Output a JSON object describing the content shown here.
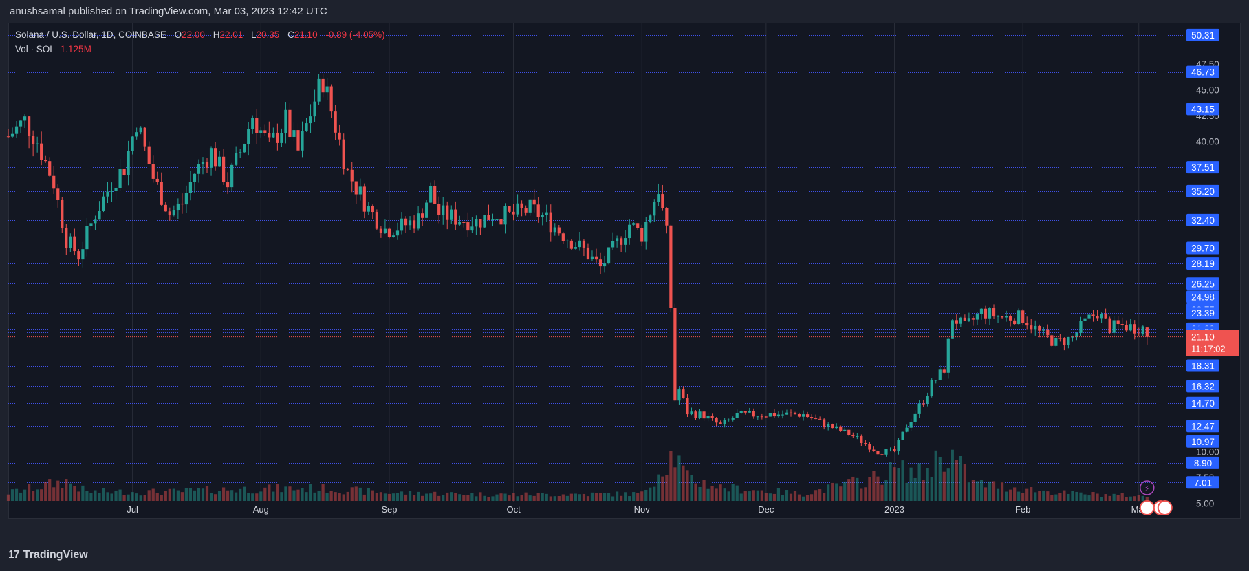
{
  "header": {
    "publisher": "anushsamal published on TradingView.com, Mar 03, 2023 12:42 UTC"
  },
  "legend": {
    "symbol": "Solana / U.S. Dollar, 1D, COINBASE",
    "open_label": "O",
    "open": "22.00",
    "high_label": "H",
    "high": "22.01",
    "low_label": "L",
    "low": "20.35",
    "close_label": "C",
    "close": "21.10",
    "change": "-0.89 (-4.05%)",
    "volume_label": "Vol · SOL",
    "volume": "1.125M"
  },
  "footer": {
    "brand": "TradingView"
  },
  "colors": {
    "up": "#26a69a",
    "down": "#ef5350",
    "bg": "#131722",
    "grid": "#2a2e39",
    "hline": "#3f51e8",
    "label": "#2962ff"
  },
  "chart_data": {
    "type": "candlestick",
    "title": "Solana / U.S. Dollar, 1D, COINBASE",
    "currency": "USD",
    "xlim": [
      "2022-06-01",
      "2023-03-12"
    ],
    "ylim": [
      3.5,
      51.5
    ],
    "x_ticks": [
      "Jul",
      "Aug",
      "Sep",
      "Oct",
      "Nov",
      "Dec",
      "2023",
      "Feb",
      "Mar"
    ],
    "y_ticks": [
      "5.00",
      "7.50",
      "10.00",
      "40.00",
      "42.50",
      "45.00",
      "47.50"
    ],
    "price_levels": [
      50.31,
      46.73,
      43.15,
      37.51,
      35.2,
      32.4,
      29.7,
      28.19,
      26.25,
      24.98,
      23.75,
      23.39,
      21.88,
      21.53,
      20.55,
      18.31,
      16.32,
      14.7,
      12.47,
      10.97,
      8.9,
      7.01
    ],
    "price_level_labels": [
      "50.31",
      "46.73",
      "43.15",
      "37.51",
      "35.20",
      "32.40",
      "29.70",
      "28.19",
      "26.25",
      "24.98",
      "23.75",
      "23.39",
      "21.88",
      "21.53",
      "20.55",
      "18.31",
      "16.32",
      "14.70",
      "12.47",
      "10.97",
      "8.90",
      "7.01"
    ],
    "current_price": "21.10",
    "countdown": "11:17:02",
    "last_ohlc": {
      "open": 22.0,
      "high": 22.01,
      "low": 20.35,
      "close": 21.1
    },
    "close_path": [
      [
        "2022-06-01",
        40.5
      ],
      [
        "2022-06-05",
        42.0
      ],
      [
        "2022-06-08",
        40.0
      ],
      [
        "2022-06-12",
        36.0
      ],
      [
        "2022-06-15",
        30.5
      ],
      [
        "2022-06-18",
        29.0
      ],
      [
        "2022-06-22",
        33.0
      ],
      [
        "2022-06-26",
        36.0
      ],
      [
        "2022-06-29",
        37.5
      ],
      [
        "2022-07-02",
        42.0
      ],
      [
        "2022-07-06",
        36.5
      ],
      [
        "2022-07-10",
        33.0
      ],
      [
        "2022-07-13",
        34.0
      ],
      [
        "2022-07-16",
        37.0
      ],
      [
        "2022-07-20",
        39.0
      ],
      [
        "2022-07-24",
        36.0
      ],
      [
        "2022-07-27",
        39.0
      ],
      [
        "2022-07-30",
        42.5
      ],
      [
        "2022-08-03",
        39.5
      ],
      [
        "2022-08-07",
        42.0
      ],
      [
        "2022-08-10",
        39.0
      ],
      [
        "2022-08-14",
        44.0
      ],
      [
        "2022-08-16",
        46.0
      ],
      [
        "2022-08-19",
        41.5
      ],
      [
        "2022-08-22",
        37.0
      ],
      [
        "2022-08-27",
        33.5
      ],
      [
        "2022-08-31",
        31.5
      ],
      [
        "2022-09-04",
        31.8
      ],
      [
        "2022-09-08",
        32.5
      ],
      [
        "2022-09-11",
        35.2
      ],
      [
        "2022-09-13",
        33.0
      ],
      [
        "2022-09-18",
        32.5
      ],
      [
        "2022-09-22",
        32.2
      ],
      [
        "2022-09-26",
        33.0
      ],
      [
        "2022-09-30",
        32.8
      ],
      [
        "2022-10-05",
        33.5
      ],
      [
        "2022-10-09",
        32.5
      ],
      [
        "2022-10-13",
        31.0
      ],
      [
        "2022-10-18",
        29.5
      ],
      [
        "2022-10-22",
        27.8
      ],
      [
        "2022-10-25",
        29.5
      ],
      [
        "2022-10-29",
        32.0
      ],
      [
        "2022-11-01",
        31.0
      ],
      [
        "2022-11-05",
        35.5
      ],
      [
        "2022-11-07",
        31.0
      ],
      [
        "2022-11-08",
        24.0
      ],
      [
        "2022-11-09",
        15.0
      ],
      [
        "2022-11-10",
        16.0
      ],
      [
        "2022-11-12",
        13.8
      ],
      [
        "2022-11-16",
        13.5
      ],
      [
        "2022-11-20",
        12.5
      ],
      [
        "2022-11-24",
        13.5
      ],
      [
        "2022-11-30",
        13.6
      ],
      [
        "2022-12-05",
        13.6
      ],
      [
        "2022-12-10",
        13.6
      ],
      [
        "2022-12-16",
        12.5
      ],
      [
        "2022-12-22",
        11.5
      ],
      [
        "2022-12-28",
        10.0
      ],
      [
        "2023-01-01",
        10.0
      ],
      [
        "2023-01-04",
        12.5
      ],
      [
        "2023-01-08",
        15.0
      ],
      [
        "2023-01-10",
        16.5
      ],
      [
        "2023-01-13",
        18.0
      ],
      [
        "2023-01-15",
        23.0
      ],
      [
        "2023-01-18",
        22.0
      ],
      [
        "2023-01-22",
        23.5
      ],
      [
        "2023-01-27",
        23.0
      ],
      [
        "2023-02-01",
        23.0
      ],
      [
        "2023-02-05",
        21.5
      ],
      [
        "2023-02-09",
        20.5
      ],
      [
        "2023-02-13",
        21.0
      ],
      [
        "2023-02-16",
        22.5
      ],
      [
        "2023-02-19",
        23.5
      ],
      [
        "2023-02-22",
        22.0
      ],
      [
        "2023-02-25",
        22.2
      ],
      [
        "2023-02-28",
        22.0
      ],
      [
        "2023-03-02",
        21.99
      ],
      [
        "2023-03-03",
        21.1
      ]
    ],
    "volume_path": [
      [
        "2022-06-01",
        0.9
      ],
      [
        "2022-06-15",
        2.2
      ],
      [
        "2022-06-20",
        1.0
      ],
      [
        "2022-07-10",
        1.0
      ],
      [
        "2022-07-25",
        1.3
      ],
      [
        "2022-08-15",
        1.4
      ],
      [
        "2022-09-01",
        0.9
      ],
      [
        "2022-10-01",
        0.7
      ],
      [
        "2022-11-01",
        0.8
      ],
      [
        "2022-11-08",
        5.0
      ],
      [
        "2022-11-09",
        5.0
      ],
      [
        "2022-11-12",
        2.5
      ],
      [
        "2022-11-20",
        1.5
      ],
      [
        "2022-12-10",
        0.8
      ],
      [
        "2022-12-27",
        2.5
      ],
      [
        "2023-01-01",
        3.5
      ],
      [
        "2023-01-08",
        3.0
      ],
      [
        "2023-01-12",
        5.0
      ],
      [
        "2023-01-15",
        5.0
      ],
      [
        "2023-01-20",
        2.0
      ],
      [
        "2023-02-10",
        0.9
      ],
      [
        "2023-03-03",
        0.5
      ]
    ]
  }
}
